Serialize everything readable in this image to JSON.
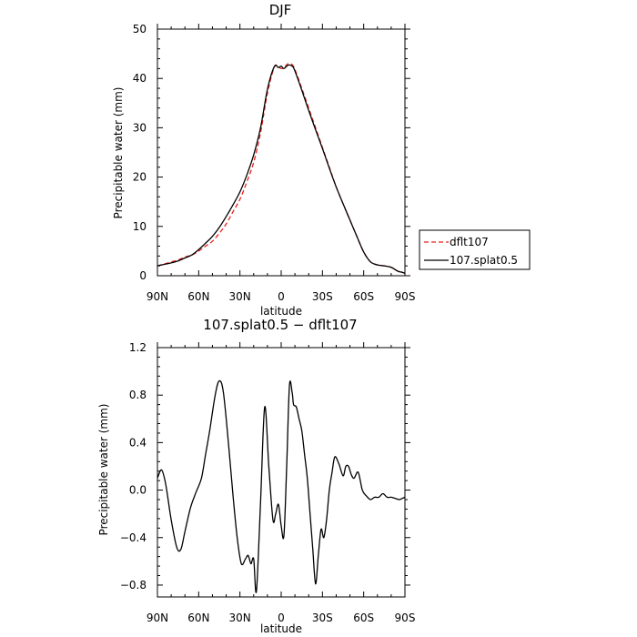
{
  "chart_data": [
    {
      "type": "line",
      "title": "DJF",
      "xlabel": "latitude",
      "ylabel": "Precipitable water  (mm)",
      "xlim": [
        90,
        -90
      ],
      "ylim": [
        0,
        50
      ],
      "xticks": [
        90,
        60,
        30,
        0,
        -30,
        -60,
        -90
      ],
      "xtick_labels": [
        "90N",
        "60N",
        "30N",
        "0",
        "30S",
        "60S",
        "90S"
      ],
      "yticks": [
        0,
        10,
        20,
        30,
        40,
        50
      ],
      "ytick_labels": [
        "0",
        "10",
        "20",
        "30",
        "40",
        "50"
      ],
      "legend_position": "right",
      "series": [
        {
          "name": "dflt107",
          "color": "#e8211d",
          "dash": "dashed",
          "x": [
            90,
            85,
            80,
            75,
            70,
            65,
            60,
            55,
            50,
            45,
            40,
            35,
            30,
            25,
            20,
            15,
            10,
            5,
            2,
            0,
            -2,
            -5,
            -8,
            -10,
            -15,
            -20,
            -25,
            -30,
            -35,
            -40,
            -45,
            -50,
            -55,
            -60,
            -65,
            -70,
            -75,
            -80,
            -85,
            -88,
            -90
          ],
          "y": [
            2.0,
            2.4,
            2.8,
            3.2,
            3.8,
            4.2,
            5.0,
            6.0,
            7.0,
            8.6,
            10.5,
            13.0,
            15.5,
            19.0,
            23.0,
            29.0,
            37.0,
            42.3,
            42.4,
            42.0,
            42.2,
            43.0,
            42.8,
            41.8,
            38.0,
            34.0,
            30.0,
            26.0,
            22.0,
            18.0,
            14.6,
            11.3,
            8.0,
            4.8,
            2.8,
            2.2,
            2.0,
            1.7,
            0.9,
            0.7,
            0.5
          ]
        },
        {
          "name": "107.splat0.5",
          "color": "#000000",
          "dash": "solid",
          "x": [
            90,
            85,
            80,
            75,
            70,
            65,
            60,
            55,
            50,
            45,
            40,
            35,
            30,
            25,
            20,
            15,
            10,
            5,
            2,
            0,
            -2,
            -5,
            -8,
            -10,
            -15,
            -20,
            -25,
            -30,
            -35,
            -40,
            -45,
            -50,
            -55,
            -60,
            -65,
            -70,
            -75,
            -80,
            -85,
            -88,
            -90
          ],
          "y": [
            2.0,
            2.3,
            2.6,
            3.0,
            3.6,
            4.2,
            5.3,
            6.6,
            8.0,
            9.8,
            12.0,
            14.4,
            17.0,
            20.4,
            24.5,
            30.0,
            37.8,
            42.4,
            42.2,
            42.5,
            42.0,
            42.7,
            42.5,
            41.5,
            37.6,
            33.5,
            29.6,
            25.8,
            21.8,
            18.0,
            14.6,
            11.3,
            8.0,
            4.8,
            2.8,
            2.2,
            2.0,
            1.7,
            0.9,
            0.7,
            0.5
          ]
        }
      ]
    },
    {
      "type": "line",
      "title": "107.splat0.5 − dflt107",
      "xlabel": "latitude",
      "ylabel": "Precipitable water  (mm)",
      "xlim": [
        90,
        -90
      ],
      "ylim": [
        -0.9,
        1.2
      ],
      "xticks": [
        90,
        60,
        30,
        0,
        -30,
        -60,
        -90
      ],
      "xtick_labels": [
        "90N",
        "60N",
        "30N",
        "0",
        "30S",
        "60S",
        "90S"
      ],
      "yticks": [
        -0.8,
        -0.4,
        0.0,
        0.4,
        0.8,
        1.2
      ],
      "ytick_labels": [
        "−0.8",
        "−0.4",
        "0.0",
        "0.4",
        "0.8",
        "1.2"
      ],
      "series": [
        {
          "color": "#000000",
          "dash": "solid",
          "x": [
            90,
            87,
            84,
            80,
            76,
            73,
            70,
            66,
            62,
            58,
            55,
            52,
            48,
            45,
            42,
            38,
            35,
            32,
            29,
            26,
            24,
            22,
            20,
            18,
            15,
            12,
            9,
            6,
            4,
            2,
            0,
            -2,
            -4,
            -6,
            -8,
            -9,
            -11,
            -13,
            -15,
            -17,
            -19,
            -21,
            -23,
            -25,
            -27,
            -29,
            -31,
            -33,
            -35,
            -37,
            -39,
            -42,
            -45,
            -47,
            -49,
            -51,
            -53,
            -56,
            -59,
            -62,
            -65,
            -68,
            -71,
            -74,
            -77,
            -80,
            -83,
            -86,
            -88,
            -90
          ],
          "y": [
            0.1,
            0.17,
            0.05,
            -0.25,
            -0.48,
            -0.5,
            -0.35,
            -0.15,
            -0.02,
            0.1,
            0.3,
            0.5,
            0.8,
            0.92,
            0.82,
            0.35,
            -0.05,
            -0.4,
            -0.62,
            -0.58,
            -0.55,
            -0.62,
            -0.58,
            -0.85,
            -0.1,
            0.7,
            0.2,
            -0.25,
            -0.2,
            -0.12,
            -0.3,
            -0.38,
            0.2,
            0.88,
            0.82,
            0.72,
            0.7,
            0.6,
            0.5,
            0.3,
            0.1,
            -0.2,
            -0.5,
            -0.79,
            -0.55,
            -0.33,
            -0.4,
            -0.25,
            0.0,
            0.15,
            0.28,
            0.22,
            0.12,
            0.2,
            0.2,
            0.13,
            0.1,
            0.15,
            0.0,
            -0.05,
            -0.08,
            -0.06,
            -0.06,
            -0.03,
            -0.06,
            -0.06,
            -0.07,
            -0.08,
            -0.07,
            -0.06
          ]
        }
      ]
    }
  ]
}
